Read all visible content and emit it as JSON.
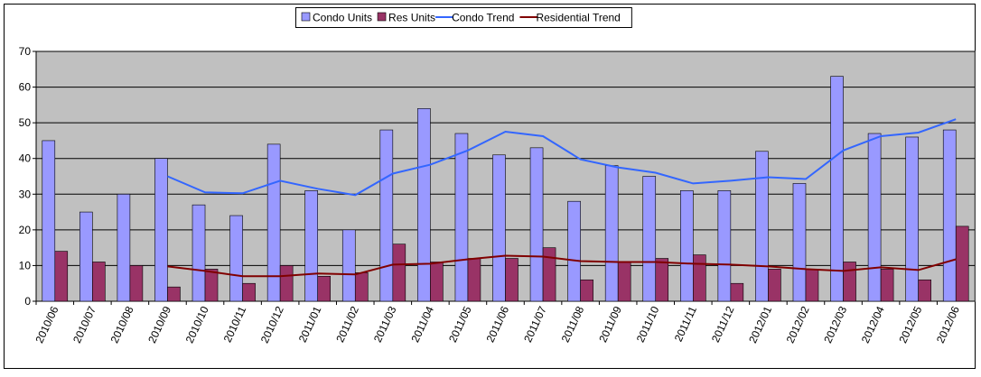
{
  "chart_data": {
    "type": "bar",
    "categories": [
      "2010/06",
      "2010/07",
      "2010/08",
      "2010/09",
      "2010/10",
      "2010/11",
      "2010/12",
      "2011/01",
      "2011/02",
      "2011/03",
      "2011/04",
      "2011/05",
      "2011/06",
      "2011/07",
      "2011/08",
      "2011/09",
      "2011/10",
      "2011/11",
      "2011/12",
      "2012/01",
      "2012/02",
      "2012/03",
      "2012/04",
      "2012/05",
      "2012/06"
    ],
    "series": [
      {
        "name": "Condo Units",
        "type": "bar",
        "color": "#9999ff",
        "values": [
          45,
          25,
          30,
          40,
          27,
          24,
          44,
          31,
          20,
          48,
          54,
          47,
          41,
          43,
          28,
          38,
          35,
          31,
          31,
          42,
          33,
          63,
          47,
          46,
          48
        ]
      },
      {
        "name": "Res Units",
        "type": "bar",
        "color": "#993366",
        "values": [
          14,
          11,
          10,
          4,
          9,
          5,
          10,
          7,
          8,
          16,
          11,
          12,
          12,
          15,
          6,
          11,
          12,
          13,
          5,
          9,
          9,
          11,
          9,
          6,
          21
        ]
      },
      {
        "name": "Condo Trend",
        "type": "line",
        "color": "#3366ff",
        "values": [
          null,
          null,
          null,
          35,
          30.5,
          30.25,
          33.75,
          31.5,
          29.75,
          35.75,
          38.25,
          42.25,
          47.5,
          46.25,
          39.75,
          37.5,
          36,
          33,
          33.75,
          34.75,
          34.25,
          42.25,
          46.25,
          47.25,
          51
        ]
      },
      {
        "name": "Residential Trend",
        "type": "line",
        "color": "#800000",
        "values": [
          null,
          null,
          null,
          9.75,
          8.5,
          7,
          7,
          7.75,
          7.5,
          10.25,
          10.5,
          11.75,
          12.75,
          12.5,
          11.25,
          11,
          11,
          10.5,
          10.25,
          9.75,
          9,
          8.5,
          9.5,
          8.75,
          11.75
        ]
      }
    ],
    "ylim": [
      0,
      70
    ],
    "yticks": [
      0,
      10,
      20,
      30,
      40,
      50,
      60,
      70
    ],
    "grid": true,
    "legend": "top"
  }
}
